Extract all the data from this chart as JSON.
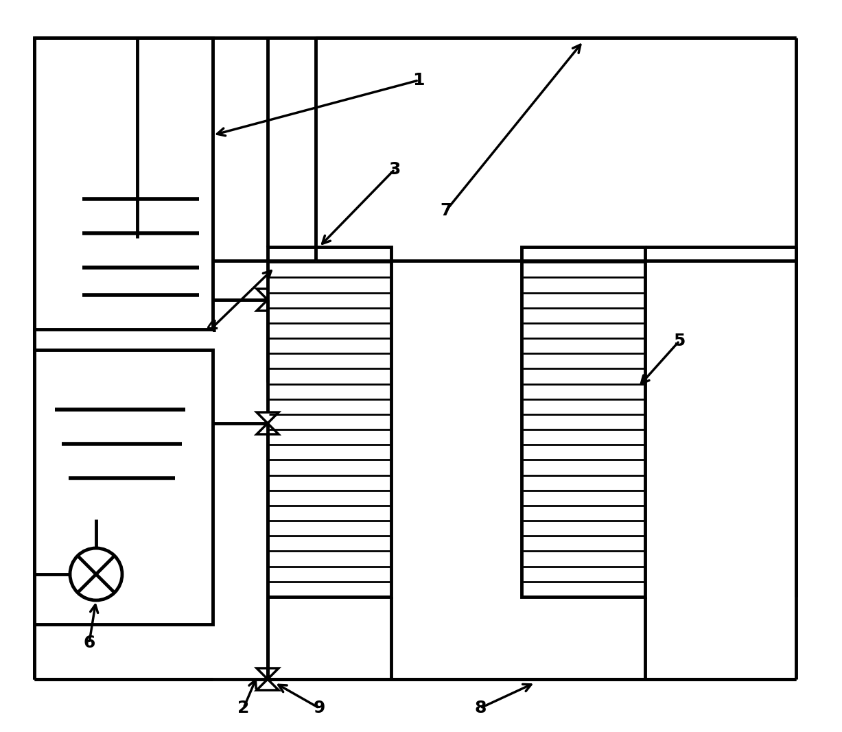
{
  "bg_color": "#ffffff",
  "line_color": "#000000",
  "lw": 3.5,
  "valve_lw": 2.5,
  "hatch_lw": 2.0,
  "fig_width": 12.27,
  "fig_height": 10.67,
  "label_fontsize": 18
}
